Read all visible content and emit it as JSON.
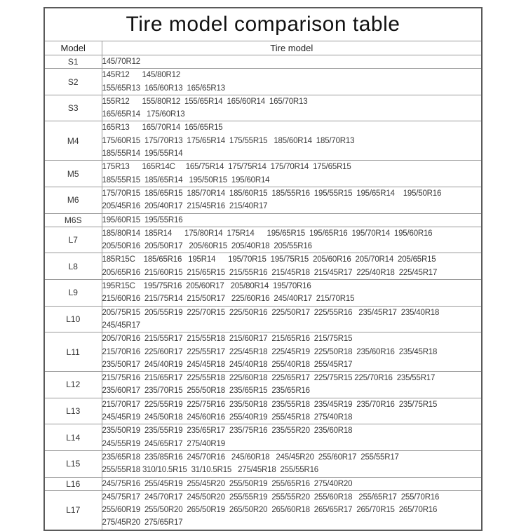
{
  "title": "Tire model comparison table",
  "colors": {
    "background": "#ffffff",
    "border_outer": "#5a5a5a",
    "border_inner": "#999999",
    "text": "#3a3a3a",
    "title_text": "#111111"
  },
  "table": {
    "headers": {
      "model": "Model",
      "tires": "Tire model"
    },
    "rows": [
      {
        "model": "S1",
        "lines": [
          "145/70R12"
        ]
      },
      {
        "model": "S2",
        "lines": [
          "145R12      145/80R12",
          "155/65R13  165/60R13  165/65R13"
        ]
      },
      {
        "model": "S3",
        "lines": [
          "155R12      155/80R12  155/65R14  165/60R14  165/70R13",
          "165/65R14   175/60R13"
        ]
      },
      {
        "model": "M4",
        "lines": [
          "165R13      165/70R14  165/65R15",
          "175/60R15  175/70R13  175/65R14  175/55R15   185/60R14  185/70R13",
          "185/55R14  195/55R14"
        ]
      },
      {
        "model": "M5",
        "lines": [
          "175R13      165R14C     165/75R14  175/75R14  175/70R14  175/65R15",
          "185/55R15  185/65R14   195/50R15  195/60R14"
        ]
      },
      {
        "model": "M6",
        "lines": [
          "175/70R15  185/65R15  185/70R14  185/60R15  185/55R16  195/55R15  195/65R14    195/50R16",
          "205/45R16  205/40R17  215/45R16  215/40R17"
        ]
      },
      {
        "model": "M6S",
        "lines": [
          "195/60R15  195/55R16"
        ]
      },
      {
        "model": "L7",
        "lines": [
          "185/80R14  185R14      175/80R14  175R14      195/65R15  195/65R16  195/70R14  195/60R16",
          "205/50R16  205/50R17   205/60R15  205/40R18  205/55R16"
        ]
      },
      {
        "model": "L8",
        "lines": [
          "185R15C    185/65R16   195R14      195/70R15  195/75R15  205/60R16  205/70R14  205/65R15",
          "205/65R16  215/60R15  215/65R15  215/55R16  215/45R18  215/45R17  225/40R18  225/45R17"
        ]
      },
      {
        "model": "L9",
        "lines": [
          "195R15C    195/75R16  205/60R17   205/80R14  195/70R16",
          "215/60R16  215/75R14  215/50R17   225/60R16  245/40R17  215/70R15"
        ]
      },
      {
        "model": "L10",
        "lines": [
          "205/75R15  205/55R19  225/70R15  225/50R16  225/50R17  225/55R16   235/45R17  235/40R18",
          "245/45R17"
        ]
      },
      {
        "model": "L11",
        "lines": [
          "205/70R16  215/55R17  215/55R18  215/60R17  215/65R16  215/75R15",
          "215/70R16  225/60R17  225/55R17  225/45R18  225/45R19  225/50R18  235/60R16  235/45R18",
          "235/50R17  245/40R19  245/45R18  245/40R18  255/40R18  255/45R17"
        ]
      },
      {
        "model": "L12",
        "lines": [
          "215/75R16  215/65R17  225/55R18  225/60R18  225/65R17  225/75R15 225/70R16  235/55R17",
          "235/60R17  235/70R15  255/50R18  235/65R15  235/65R16"
        ]
      },
      {
        "model": "L13",
        "lines": [
          "215/70R17  225/55R19  225/75R16  235/50R18  235/55R18  235/45R19  235/70R16  235/75R15",
          "245/45R19  245/50R18  245/60R16  255/40R19  255/45R18  275/40R18"
        ]
      },
      {
        "model": "L14",
        "lines": [
          "235/50R19  235/55R19  235/65R17  235/75R16  235/55R20  235/60R18",
          "245/55R19  245/65R17  275/40R19"
        ]
      },
      {
        "model": "L15",
        "lines": [
          "235/65R18  235/85R16  245/70R16   245/60R18   245/45R20  255/60R17  255/55R17",
          "255/55R18 310/10.5R15  31/10.5R15   275/45R18  255/55R16"
        ]
      },
      {
        "model": "L16",
        "lines": [
          "245/75R16  255/45R19  255/45R20  255/50R19  255/65R16  275/40R20"
        ]
      },
      {
        "model": "L17",
        "lines": [
          "245/75R17  245/70R17  245/50R20  255/55R19  255/55R20  255/60R18   255/65R17  255/70R16",
          "255/60R19  255/50R20  265/50R19  265/50R20  265/60R18  265/65R17  265/70R15  265/70R16",
          "275/45R20  275/65R17"
        ]
      }
    ]
  }
}
